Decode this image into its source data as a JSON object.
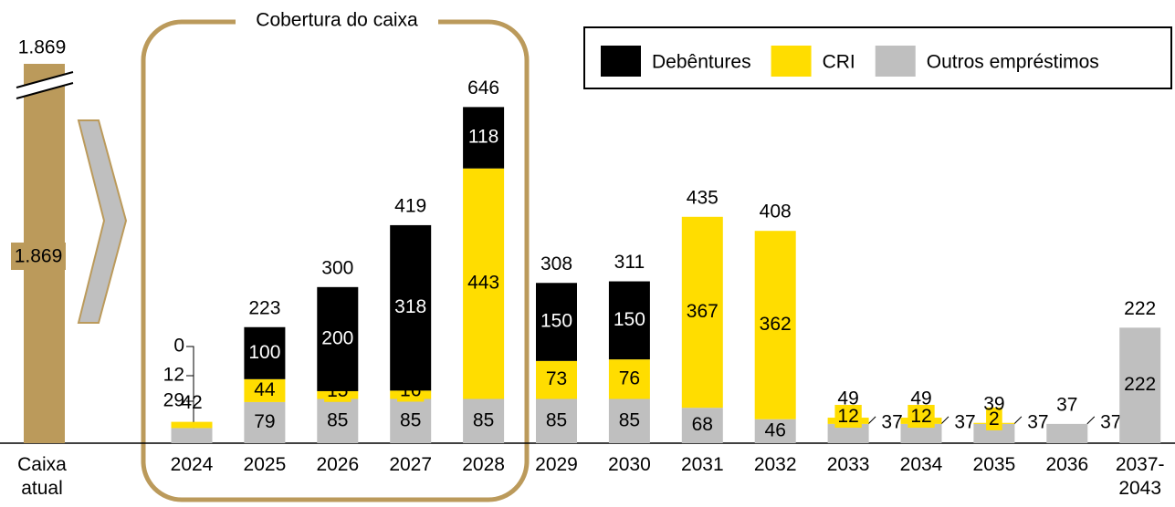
{
  "chart_data": {
    "type": "stacked_bar",
    "annotation": "Cobertura do caixa",
    "categories": [
      "2024",
      "2025",
      "2026",
      "2027",
      "2028",
      "2029",
      "2030",
      "2031",
      "2032",
      "2033",
      "2034",
      "2035",
      "2036",
      "2037-2043"
    ],
    "series": [
      {
        "name": "Outros empréstimos",
        "color": "#bfbfbf",
        "values": [
          29,
          79,
          85,
          85,
          85,
          85,
          85,
          68,
          46,
          37,
          37,
          37,
          37,
          222
        ]
      },
      {
        "name": "CRI",
        "color": "#ffdd00",
        "values": [
          12,
          44,
          15,
          16,
          443,
          73,
          76,
          367,
          362,
          12,
          12,
          2,
          null,
          null
        ]
      },
      {
        "name": "Debêntures",
        "color": "#000000",
        "values": [
          0,
          100,
          200,
          318,
          118,
          150,
          150,
          null,
          null,
          null,
          null,
          null,
          null,
          null
        ]
      }
    ],
    "totals": [
      42,
      223,
      300,
      419,
      646,
      308,
      311,
      435,
      408,
      49,
      49,
      39,
      37,
      222
    ],
    "cash": {
      "label": "Caixa atual",
      "value": 1869,
      "top_label": "1.869",
      "inner_label": "1.869",
      "color": "#bb9a5b"
    },
    "ylim": [
      0,
      850
    ]
  }
}
